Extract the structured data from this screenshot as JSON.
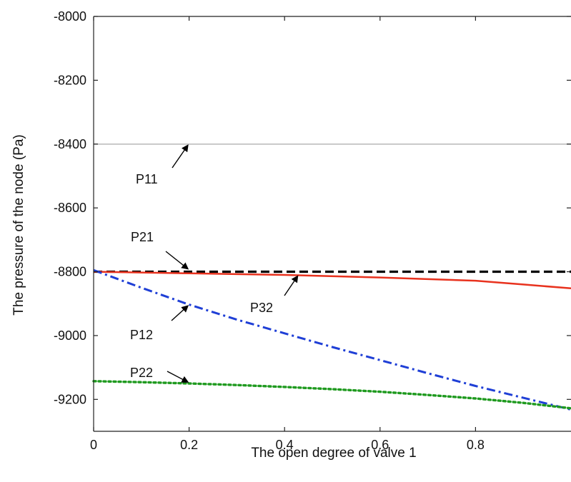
{
  "chart_data": {
    "type": "line",
    "xlabel": "The open degree of valve 1",
    "ylabel": "The pressure of the node (Pa)",
    "xlim": [
      0,
      1
    ],
    "ylim": [
      -9300,
      -8000
    ],
    "x_ticks": [
      0,
      0.2,
      0.4,
      0.6,
      0.8
    ],
    "x_tick_labels": [
      "0",
      "0.2",
      "0.4",
      "0.6",
      "0.8"
    ],
    "y_ticks": [
      -8000,
      -8200,
      -8400,
      -8600,
      -8800,
      -9000,
      -9200
    ],
    "y_tick_labels": [
      "-8000",
      "-8200",
      "-8400",
      "-8600",
      "-8800",
      "-9000",
      "-9200"
    ],
    "grid": false,
    "legend": "none",
    "series": [
      {
        "name": "P11",
        "style": "solid",
        "color": "#bdbdbd",
        "x": [
          0,
          0.2,
          0.4,
          0.6,
          0.8,
          1.0
        ],
        "y": [
          -8400,
          -8400,
          -8400,
          -8400,
          -8400,
          -8400
        ]
      },
      {
        "name": "P21",
        "style": "dashed",
        "color": "#000000",
        "x": [
          0,
          0.2,
          0.4,
          0.6,
          0.8,
          1.0
        ],
        "y": [
          -8800,
          -8800,
          -8800,
          -8800,
          -8800,
          -8800
        ]
      },
      {
        "name": "P32",
        "style": "solid",
        "color": "#e8321e",
        "x": [
          0,
          0.2,
          0.4,
          0.6,
          0.8,
          0.9,
          1.0
        ],
        "y": [
          -8800,
          -8805,
          -8810,
          -8818,
          -8828,
          -8840,
          -8852
        ]
      },
      {
        "name": "P12",
        "style": "dashdot",
        "color": "#1f3fd6",
        "x": [
          0,
          0.1,
          0.2,
          0.3,
          0.4,
          0.5,
          0.6,
          0.7,
          0.8,
          0.9,
          1.0
        ],
        "y": [
          -8795,
          -8850,
          -8903,
          -8950,
          -8993,
          -9036,
          -9077,
          -9118,
          -9158,
          -9195,
          -9232
        ]
      },
      {
        "name": "P22",
        "style": "dotted",
        "color": "#1f9a1f",
        "x": [
          0,
          0.1,
          0.2,
          0.3,
          0.4,
          0.5,
          0.6,
          0.7,
          0.8,
          0.9,
          1.0
        ],
        "y": [
          -9143,
          -9146,
          -9150,
          -9155,
          -9161,
          -9168,
          -9176,
          -9186,
          -9197,
          -9211,
          -9228
        ]
      }
    ],
    "annotations": [
      {
        "text": "P11",
        "target": {
          "x": 0.2,
          "y": -8400
        }
      },
      {
        "text": "P21",
        "target": {
          "x": 0.2,
          "y": -8795
        }
      },
      {
        "text": "P32",
        "target": {
          "x": 0.43,
          "y": -8810
        }
      },
      {
        "text": "P12",
        "target": {
          "x": 0.2,
          "y": -8903
        }
      },
      {
        "text": "P22",
        "target": {
          "x": 0.2,
          "y": -9150
        }
      }
    ]
  }
}
